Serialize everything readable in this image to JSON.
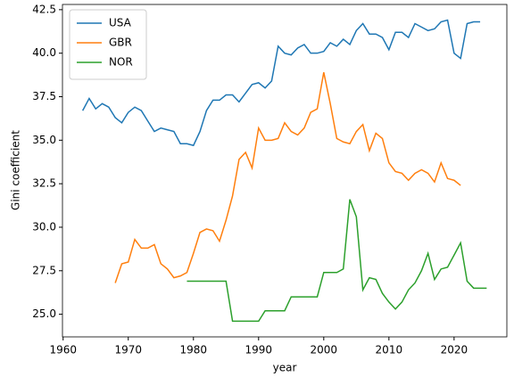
{
  "chart_data": {
    "type": "line",
    "xlabel": "year",
    "ylabel": "Gini coefficient",
    "x": [
      1963,
      1964,
      1965,
      1966,
      1967,
      1968,
      1969,
      1970,
      1971,
      1972,
      1973,
      1974,
      1975,
      1976,
      1977,
      1978,
      1979,
      1980,
      1981,
      1982,
      1983,
      1984,
      1985,
      1986,
      1987,
      1988,
      1989,
      1990,
      1991,
      1992,
      1993,
      1994,
      1995,
      1996,
      1997,
      1998,
      1999,
      2000,
      2001,
      2002,
      2003,
      2004,
      2005,
      2006,
      2007,
      2008,
      2009,
      2010,
      2011,
      2012,
      2013,
      2014,
      2015,
      2016,
      2017,
      2018,
      2019,
      2020,
      2021,
      2022,
      2023,
      2024,
      2025
    ],
    "series": [
      {
        "name": "USA",
        "color": "#1f77b4",
        "values": [
          36.7,
          37.4,
          36.8,
          37.1,
          36.9,
          36.3,
          36.0,
          36.6,
          36.9,
          36.7,
          36.1,
          35.5,
          35.7,
          35.6,
          35.5,
          34.8,
          34.8,
          34.7,
          35.5,
          36.7,
          37.3,
          37.3,
          37.6,
          37.6,
          37.2,
          37.7,
          38.2,
          38.3,
          38.0,
          38.4,
          40.4,
          40.0,
          39.9,
          40.3,
          40.5,
          40.0,
          40.0,
          40.1,
          40.6,
          40.4,
          40.8,
          40.5,
          41.3,
          41.7,
          41.1,
          41.1,
          40.9,
          40.2,
          41.2,
          41.2,
          40.9,
          41.7,
          41.5,
          41.3,
          41.4,
          41.8,
          41.9,
          40.0,
          39.7,
          41.7,
          41.8,
          41.8,
          null
        ]
      },
      {
        "name": "GBR",
        "color": "#ff7f0e",
        "values": [
          null,
          null,
          null,
          null,
          null,
          26.8,
          27.9,
          28.0,
          29.3,
          28.8,
          28.8,
          29.0,
          27.9,
          27.6,
          27.1,
          27.2,
          27.4,
          28.5,
          29.7,
          29.9,
          29.8,
          29.2,
          30.4,
          31.8,
          33.9,
          34.3,
          33.4,
          35.7,
          35.0,
          35.0,
          35.1,
          36.0,
          35.5,
          35.3,
          35.7,
          36.6,
          36.8,
          38.9,
          37.1,
          35.1,
          34.9,
          34.8,
          35.5,
          35.9,
          34.4,
          35.4,
          35.1,
          33.7,
          33.2,
          33.1,
          32.7,
          33.1,
          33.3,
          33.1,
          32.6,
          33.7,
          32.8,
          32.7,
          32.4,
          null,
          null,
          null,
          null
        ]
      },
      {
        "name": "NOR",
        "color": "#2ca02c",
        "values": [
          null,
          null,
          null,
          null,
          null,
          null,
          null,
          null,
          null,
          null,
          null,
          null,
          null,
          null,
          null,
          null,
          26.9,
          26.9,
          26.9,
          26.9,
          26.9,
          26.9,
          26.9,
          24.6,
          24.6,
          24.6,
          24.6,
          24.6,
          25.2,
          25.2,
          25.2,
          25.2,
          26.0,
          26.0,
          26.0,
          26.0,
          26.0,
          27.4,
          27.4,
          27.4,
          27.6,
          31.6,
          30.6,
          26.4,
          27.1,
          27.0,
          26.2,
          25.7,
          25.3,
          25.7,
          26.4,
          26.8,
          27.5,
          28.5,
          27.0,
          27.6,
          27.7,
          28.4,
          29.1,
          26.9,
          26.5,
          26.5,
          26.5
        ]
      }
    ],
    "xlim": [
      1959.9,
      2028.1
    ],
    "xticks": [
      1960,
      1970,
      1980,
      1990,
      2000,
      2010,
      2020
    ],
    "ylim": [
      23.7,
      42.8
    ],
    "yticks": [
      {
        "value": 25,
        "label": "25.0"
      },
      {
        "value": 27.5,
        "label": "27.5"
      },
      {
        "value": 30,
        "label": "30.0"
      },
      {
        "value": 32.5,
        "label": "32.5"
      },
      {
        "value": 35,
        "label": "35.0"
      },
      {
        "value": 37.5,
        "label": "37.5"
      },
      {
        "value": 40,
        "label": "40.0"
      },
      {
        "value": 42.5,
        "label": "42.5"
      }
    ],
    "legend": "upper left",
    "grid": false
  }
}
